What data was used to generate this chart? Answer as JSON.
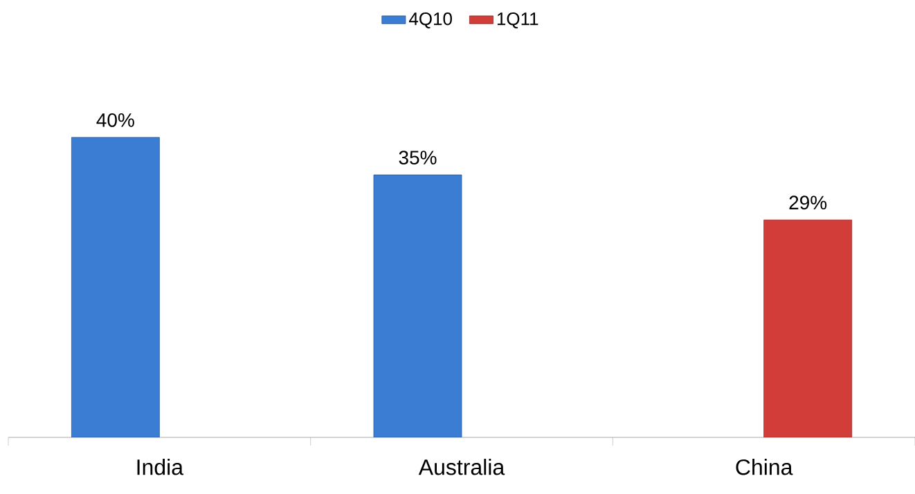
{
  "chart_data": {
    "type": "bar",
    "categories": [
      "India",
      "Australia",
      "China"
    ],
    "series": [
      {
        "name": "4Q10",
        "color": "#3c7dd4",
        "values": [
          40,
          35,
          null
        ],
        "value_labels": [
          "40%",
          "35%",
          null
        ]
      },
      {
        "name": "1Q11",
        "color": "#d23d3a",
        "values": [
          null,
          null,
          29
        ],
        "value_labels": [
          null,
          null,
          "29%"
        ]
      }
    ],
    "legend": "top"
  }
}
